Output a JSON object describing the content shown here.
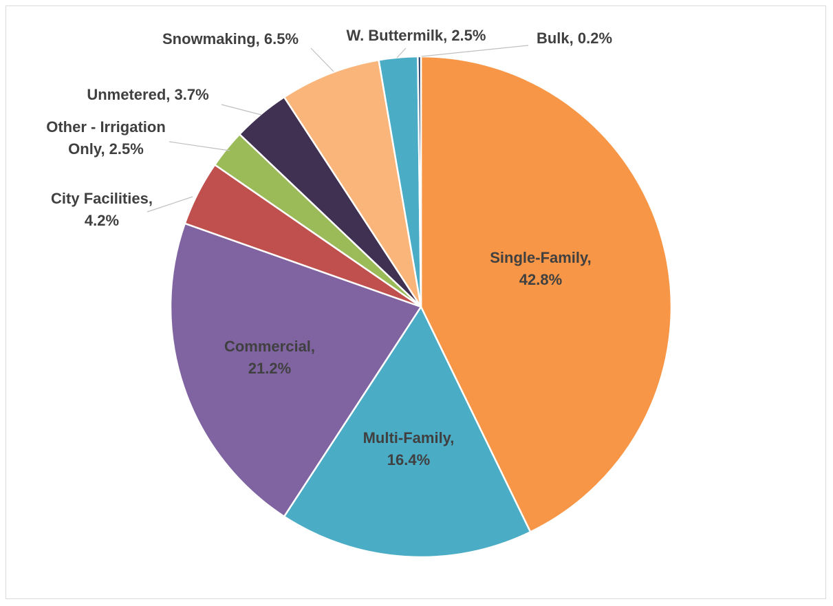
{
  "chart_data": {
    "type": "pie",
    "title": "",
    "slices": [
      {
        "name": "Single-Family",
        "value": 42.8,
        "label": [
          "Single-Family,",
          "42.8%"
        ],
        "color": "#f79646"
      },
      {
        "name": "Multi-Family",
        "value": 16.4,
        "label": [
          "Multi-Family,",
          "16.4%"
        ],
        "color": "#4bacc6"
      },
      {
        "name": "Commercial",
        "value": 21.2,
        "label": [
          "Commercial,",
          "21.2%"
        ],
        "color": "#8064a2"
      },
      {
        "name": "City Facilities",
        "value": 4.2,
        "label": [
          "City Facilities,",
          "4.2%"
        ],
        "color": "#c0504d"
      },
      {
        "name": "Other - Irrigation Only",
        "value": 2.5,
        "label": [
          "Other - Irrigation",
          "Only, 2.5%"
        ],
        "color": "#9bbb59"
      },
      {
        "name": "Unmetered",
        "value": 3.7,
        "label": [
          "Unmetered, 3.7%"
        ],
        "color": "#403152"
      },
      {
        "name": "Snowmaking",
        "value": 6.5,
        "label": [
          "Snowmaking, 6.5%"
        ],
        "color": "#fab57a"
      },
      {
        "name": "W. Buttermilk",
        "value": 2.5,
        "label": [
          "W. Buttermilk, 2.5%"
        ],
        "color": "#4bacc6"
      },
      {
        "name": "Bulk",
        "value": 0.2,
        "label": [
          "Bulk, 0.2%"
        ],
        "color": "#1f3864"
      }
    ],
    "start_angle": "12 o'clock",
    "direction": "clockwise",
    "legend": "none"
  }
}
